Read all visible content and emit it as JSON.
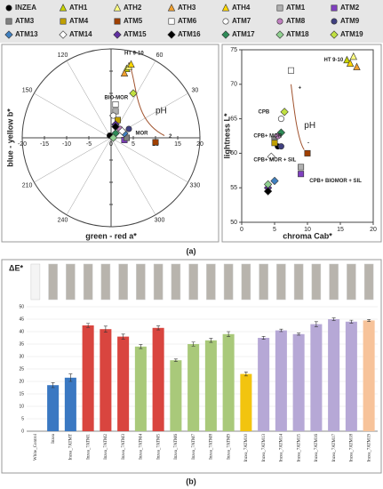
{
  "chart_data": [
    {
      "type": "polar-scatter",
      "xlabel": "green - red a*",
      "ylabel": "blue - yellow b*",
      "xlim": [
        -20,
        20
      ],
      "ylim": [
        -20,
        20
      ],
      "xticks": [
        -20,
        -15,
        -10,
        -5,
        0,
        5,
        10,
        15,
        20
      ],
      "yticks": [
        -20,
        -15,
        -10,
        -5,
        0,
        5,
        10,
        15,
        20
      ],
      "angle_ticks": [
        30,
        60,
        120,
        150,
        210,
        240,
        300,
        330
      ],
      "annotations": [
        "HT 9-10",
        "BIO-MOR",
        "MOR",
        "pH",
        "2"
      ],
      "series": [
        {
          "name": "INZEA",
          "color": "#000000",
          "marker": "circle",
          "x": [
            -0.3
          ],
          "values": [
            0.5
          ]
        },
        {
          "name": "ATH1",
          "color": "#c8d400",
          "marker": "triangle",
          "x": [
            3.5
          ],
          "values": [
            15.5
          ]
        },
        {
          "name": "ATH2",
          "color": "#ffff80",
          "marker": "triangle",
          "x": [
            4
          ],
          "values": [
            16
          ]
        },
        {
          "name": "ATH3",
          "color": "#f0a030",
          "marker": "triangle",
          "x": [
            3
          ],
          "values": [
            14.5
          ]
        },
        {
          "name": "ATH4",
          "color": "#ffd700",
          "marker": "triangle",
          "x": [
            4.5
          ],
          "values": [
            16.5
          ]
        },
        {
          "name": "ATM1",
          "color": "#b0b0b0",
          "marker": "square",
          "x": [
            1
          ],
          "values": [
            6
          ]
        },
        {
          "name": "ATM2",
          "color": "#8040c0",
          "marker": "square",
          "x": [
            3
          ],
          "values": [
            -0.5
          ]
        },
        {
          "name": "ATM3",
          "color": "#808080",
          "marker": "square",
          "x": [
            3.5
          ],
          "values": [
            0
          ]
        },
        {
          "name": "ATM4",
          "color": "#c0a000",
          "marker": "square",
          "x": [
            1.5
          ],
          "values": [
            4
          ]
        },
        {
          "name": "ATM5",
          "color": "#a04000",
          "marker": "square",
          "x": [
            10
          ],
          "values": [
            -1
          ]
        },
        {
          "name": "ATM6",
          "color": "#ffffff",
          "marker": "square",
          "x": [
            1
          ],
          "values": [
            7.5
          ]
        },
        {
          "name": "ATM7",
          "color": "#ffffff",
          "marker": "circle",
          "x": [
            0.5
          ],
          "values": [
            5
          ]
        },
        {
          "name": "ATM8",
          "color": "#c080c0",
          "marker": "circle",
          "x": [
            2
          ],
          "values": [
            2
          ]
        },
        {
          "name": "ATM9",
          "color": "#404080",
          "marker": "circle",
          "x": [
            4
          ],
          "values": [
            2
          ]
        },
        {
          "name": "ATM13",
          "color": "#4080c0",
          "marker": "diamond",
          "x": [
            3
          ],
          "values": [
            1
          ]
        },
        {
          "name": "ATM14",
          "color": "#ffffff",
          "marker": "diamond",
          "x": [
            2.5
          ],
          "values": [
            1.5
          ]
        },
        {
          "name": "ATM15",
          "color": "#6030a0",
          "marker": "diamond",
          "x": [
            1
          ],
          "values": [
            3
          ]
        },
        {
          "name": "ATM16",
          "color": "#000000",
          "marker": "diamond",
          "x": [
            1
          ],
          "values": [
            2.5
          ]
        },
        {
          "name": "ATM17",
          "color": "#2e8b57",
          "marker": "diamond",
          "x": [
            1
          ],
          "values": [
            1
          ]
        },
        {
          "name": "ATM18",
          "color": "#90d090",
          "marker": "diamond",
          "x": [
            0.5
          ],
          "values": [
            0
          ]
        },
        {
          "name": "ATM19",
          "color": "#c0e040",
          "marker": "diamond",
          "x": [
            5
          ],
          "values": [
            10
          ]
        }
      ]
    },
    {
      "type": "scatter",
      "xlabel": "chroma Cab*",
      "ylabel": "lightness L*",
      "xlim": [
        0,
        20
      ],
      "ylim": [
        50,
        75
      ],
      "xticks": [
        0,
        5,
        10,
        15,
        20
      ],
      "yticks": [
        50,
        55,
        60,
        65,
        70,
        75
      ],
      "annotations": [
        "HT 9-10",
        "CPB",
        "CPB+ MOR",
        "CPB+ MOR + SIL",
        "CPB+ BIOMOR + SIL",
        "pH",
        "+",
        "-"
      ],
      "series": [
        {
          "color": "#000000",
          "marker": "circle",
          "x": [
            5.5
          ],
          "values": [
            61
          ]
        },
        {
          "color": "#c8d400",
          "marker": "triangle",
          "x": [
            16
          ],
          "values": [
            73.5
          ]
        },
        {
          "color": "#ffff80",
          "marker": "triangle",
          "x": [
            17
          ],
          "values": [
            74
          ]
        },
        {
          "color": "#f0a030",
          "marker": "triangle",
          "x": [
            17.5
          ],
          "values": [
            72.5
          ]
        },
        {
          "color": "#ffd700",
          "marker": "triangle",
          "x": [
            16.5
          ],
          "values": [
            73
          ]
        },
        {
          "color": "#b0b0b0",
          "marker": "square",
          "x": [
            9
          ],
          "values": [
            58
          ]
        },
        {
          "color": "#8040c0",
          "marker": "square",
          "x": [
            9
          ],
          "values": [
            57
          ]
        },
        {
          "color": "#808080",
          "marker": "square",
          "x": [
            5
          ],
          "values": [
            62
          ]
        },
        {
          "color": "#c0a000",
          "marker": "square",
          "x": [
            5
          ],
          "values": [
            61.5
          ]
        },
        {
          "color": "#a04000",
          "marker": "square",
          "x": [
            10
          ],
          "values": [
            60
          ]
        },
        {
          "color": "#ffffff",
          "marker": "square",
          "x": [
            7.5
          ],
          "values": [
            72
          ]
        },
        {
          "color": "#ffffff",
          "marker": "circle",
          "x": [
            6
          ],
          "values": [
            65
          ]
        },
        {
          "color": "#c080c0",
          "marker": "circle",
          "x": [
            5.5
          ],
          "values": [
            62.5
          ]
        },
        {
          "color": "#404080",
          "marker": "circle",
          "x": [
            6
          ],
          "values": [
            61
          ]
        },
        {
          "color": "#4080c0",
          "marker": "diamond",
          "x": [
            5
          ],
          "values": [
            56
          ]
        },
        {
          "color": "#ffffff",
          "marker": "diamond",
          "x": [
            4.5
          ],
          "values": [
            59.5
          ]
        },
        {
          "color": "#6030a0",
          "marker": "diamond",
          "x": [
            4
          ],
          "values": [
            55
          ]
        },
        {
          "color": "#000000",
          "marker": "diamond",
          "x": [
            4
          ],
          "values": [
            54.5
          ]
        },
        {
          "color": "#2e8b57",
          "marker": "diamond",
          "x": [
            6
          ],
          "values": [
            63
          ]
        },
        {
          "color": "#90d090",
          "marker": "diamond",
          "x": [
            4
          ],
          "values": [
            55.5
          ]
        },
        {
          "color": "#c0e040",
          "marker": "diamond",
          "x": [
            6.5
          ],
          "values": [
            66
          ]
        }
      ]
    },
    {
      "type": "bar",
      "title": "ΔE*",
      "ylim": [
        0,
        50
      ],
      "yticks": [
        0,
        5,
        10,
        15,
        20,
        25,
        30,
        35,
        40,
        45,
        50
      ],
      "categories": [
        "White_Control",
        "Inzea",
        "Inzea_7ATMT",
        "Inzea_7ATM1",
        "Inzea_7ATM2",
        "Inzea_7ATM3",
        "Inzea_7ATM4",
        "Inzea_7ATM5",
        "Inzea_7ATM6",
        "Inzea_7ATM7",
        "Inzea_7ATM8",
        "Inzea_7ATM9",
        "Inzea_7ATM10",
        "Inzea_7ATM13",
        "Inzea_7ATM14",
        "Inzea_7ATM15",
        "Inzea_7ATM16",
        "Inzea_7ATM17",
        "Inzea_7ATM18",
        "Inzea_7ATM19"
      ],
      "values": [
        0,
        18.5,
        21.5,
        42.5,
        41,
        38,
        34,
        41.5,
        28.5,
        35,
        36.5,
        39,
        23,
        37.5,
        40.5,
        39,
        43,
        45,
        44,
        44.5
      ],
      "errors": [
        null,
        1,
        1.5,
        0.8,
        1.2,
        1,
        0.8,
        0.8,
        0.5,
        0.8,
        0.8,
        1,
        0.8,
        0.6,
        0.5,
        0.4,
        1,
        0.5,
        0.6,
        0.4
      ],
      "colors": [
        "#ffffff",
        "#3a78c2",
        "#3a78c2",
        "#d9453f",
        "#d9453f",
        "#d9453f",
        "#a9c97a",
        "#d9453f",
        "#a9c97a",
        "#a9c97a",
        "#a9c97a",
        "#a9c97a",
        "#f2c40f",
        "#b6a8d6",
        "#b6a8d6",
        "#b6a8d6",
        "#b6a8d6",
        "#b6a8d6",
        "#b6a8d6",
        "#f7c39a"
      ]
    }
  ],
  "panel_labels": [
    "(a)",
    "(b)"
  ]
}
